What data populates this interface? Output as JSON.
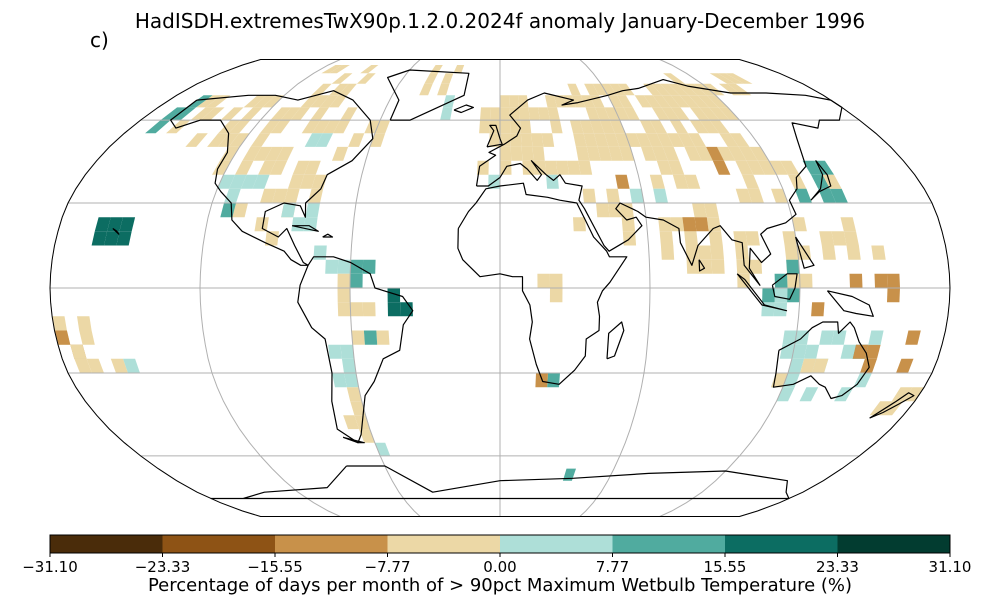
{
  "title": "HadISDH.extremesTwX90p.1.2.0.2024f anomaly January-December 1996",
  "panel_label": "c)",
  "colorbar": {
    "label": "Percentage of days per month of > 90pct Maximum Wetbulb Temperature (%)",
    "ticks": [
      "−31.10",
      "−23.33",
      "−15.55",
      "−7.77",
      "0.00",
      "7.77",
      "15.55",
      "23.33",
      "31.10"
    ],
    "colors": [
      "#4a2c0a",
      "#8e5315",
      "#c8914a",
      "#ecd8a6",
      "#aedfd8",
      "#50ab9f",
      "#0c6d62",
      "#023c30"
    ]
  },
  "map": {
    "projection": "Robinson",
    "gridlines": true,
    "colors": {
      "land_outline": "#000000",
      "grid": "#b0b0b0"
    }
  }
}
